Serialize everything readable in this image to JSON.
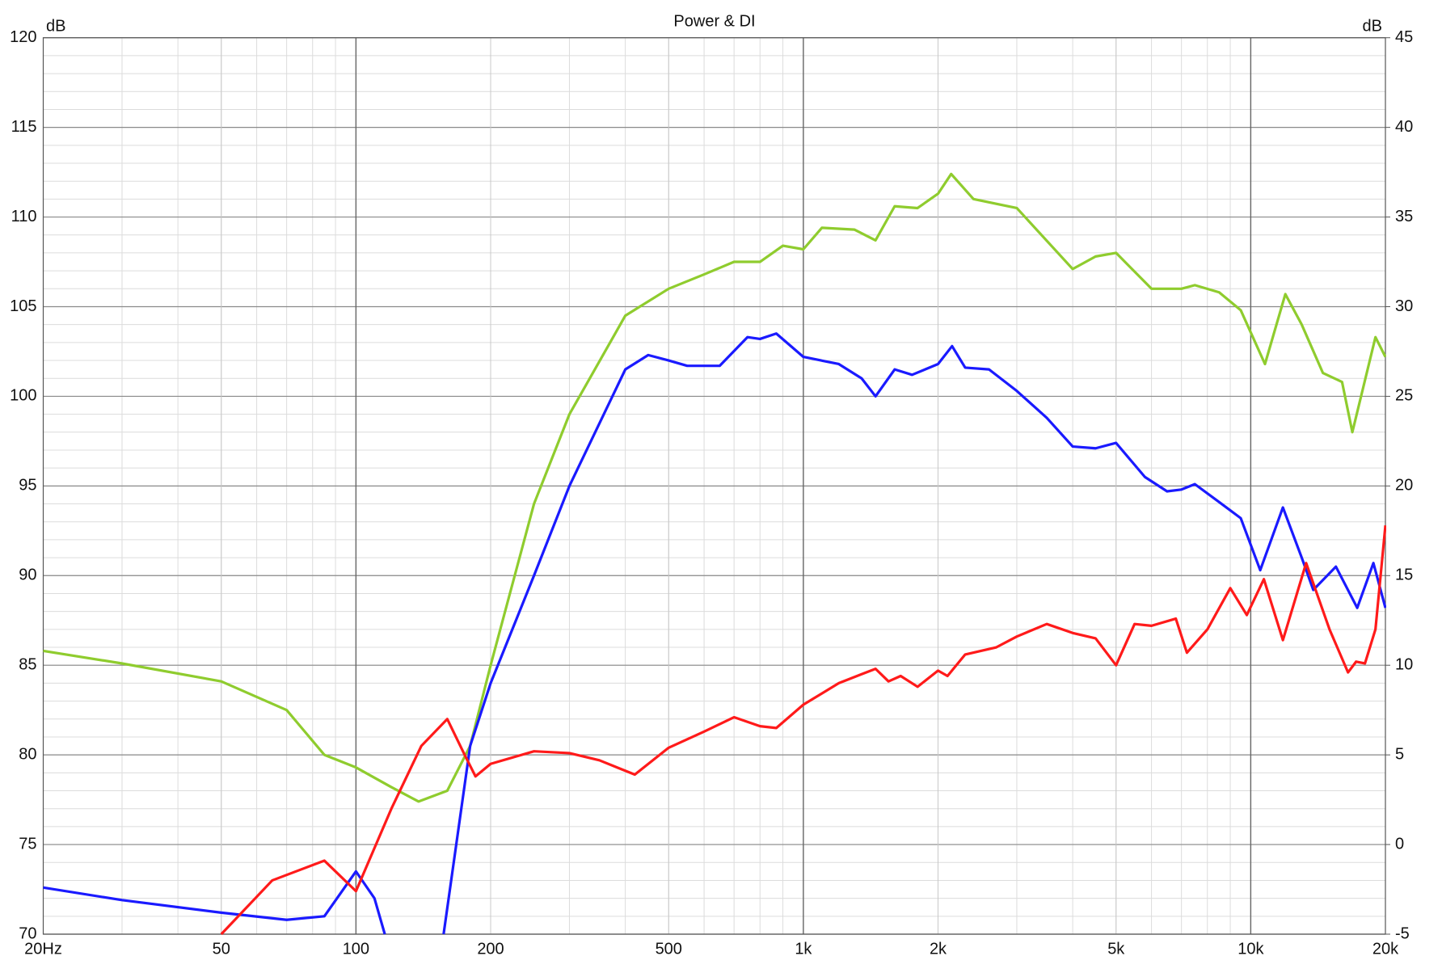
{
  "chart_data": {
    "type": "line",
    "title": "Power & DI",
    "y_label": "dB",
    "y2_label": "dB",
    "xscale": "log",
    "minor_grid": true,
    "xlim": [
      20,
      20000
    ],
    "xticks": [
      {
        "value": 20,
        "label": "20Hz"
      },
      50,
      100,
      200,
      500,
      {
        "value": 1000,
        "label": "1k"
      },
      {
        "value": 2000,
        "label": "2k"
      },
      {
        "value": 5000,
        "label": "5k"
      },
      {
        "value": 10000,
        "label": "10k"
      },
      {
        "value": 20000,
        "label": "20k"
      }
    ],
    "ylim": [
      70,
      120
    ],
    "yticks": [
      70,
      75,
      80,
      85,
      90,
      95,
      100,
      105,
      110,
      115,
      120
    ],
    "y2lim": [
      -5,
      45
    ],
    "y2ticks": [
      -5,
      0,
      5,
      10,
      15,
      20,
      25,
      30,
      35,
      40,
      45
    ],
    "series": [
      {
        "color": "#8fcc2e",
        "x": [
          20,
          30,
          50,
          70,
          85,
          100,
          120,
          138,
          160,
          180,
          200,
          250,
          300,
          400,
          500,
          600,
          700,
          800,
          900,
          1000,
          1100,
          1300,
          1450,
          1600,
          1800,
          2000,
          2140,
          2400,
          3000,
          4000,
          4500,
          5000,
          6000,
          7000,
          7500,
          8500,
          9500,
          10760,
          11950,
          13000,
          14500,
          16000,
          16870,
          19000,
          20000
        ],
        "values": [
          85.8,
          85.1,
          84.1,
          82.5,
          80.0,
          79.3,
          78.2,
          77.4,
          78.0,
          80.5,
          85.0,
          94.0,
          99.0,
          104.5,
          106.0,
          106.8,
          107.5,
          107.5,
          108.4,
          108.2,
          109.4,
          109.3,
          108.7,
          110.6,
          110.5,
          111.3,
          112.4,
          111.0,
          110.5,
          107.1,
          107.8,
          108.0,
          106.0,
          106.0,
          106.2,
          105.8,
          104.8,
          101.8,
          105.7,
          104.0,
          101.3,
          100.8,
          98.0,
          103.3,
          102.2
        ]
      },
      {
        "color": "#1a1aff",
        "x": [
          20,
          30,
          50,
          70,
          85,
          100,
          110,
          116,
          135,
          157,
          180,
          200,
          250,
          300,
          400,
          450,
          500,
          550,
          650,
          750,
          800,
          870,
          1000,
          1200,
          1350,
          1450,
          1600,
          1750,
          2000,
          2150,
          2300,
          2600,
          3000,
          3500,
          4000,
          4500,
          5000,
          5800,
          6500,
          7000,
          7500,
          8500,
          9500,
          10500,
          11800,
          13000,
          13800,
          15500,
          17300,
          18800,
          20000
        ],
        "values": [
          72.6,
          71.9,
          71.2,
          70.8,
          71.0,
          73.5,
          72.0,
          70.0,
          null,
          70.0,
          80.5,
          84.0,
          90.0,
          95.0,
          101.5,
          102.3,
          102.0,
          101.7,
          101.7,
          103.3,
          103.2,
          103.5,
          102.2,
          101.8,
          101.0,
          100.0,
          101.5,
          101.2,
          101.8,
          102.8,
          101.6,
          101.5,
          100.3,
          98.8,
          97.2,
          97.1,
          97.4,
          95.5,
          94.7,
          94.8,
          95.1,
          94.1,
          93.2,
          90.3,
          93.8,
          91.0,
          89.2,
          90.5,
          88.2,
          90.7,
          88.2
        ]
      },
      {
        "color": "#ff1a1a",
        "axis": "y2",
        "x": [
          50,
          65,
          85,
          100,
          120,
          140,
          160,
          175,
          185,
          200,
          250,
          300,
          350,
          420,
          500,
          600,
          700,
          800,
          870,
          1000,
          1200,
          1350,
          1450,
          1550,
          1650,
          1800,
          2000,
          2100,
          2300,
          2700,
          3000,
          3500,
          4000,
          4500,
          5000,
          5500,
          6000,
          6800,
          7200,
          8000,
          9000,
          9800,
          10700,
          11800,
          13300,
          15000,
          16500,
          17200,
          18000,
          19000,
          20000
        ],
        "values": [
          -5.0,
          -2.0,
          -0.9,
          -2.6,
          2.0,
          5.5,
          7.0,
          5.0,
          3.8,
          4.5,
          5.2,
          5.1,
          4.7,
          3.9,
          5.4,
          6.3,
          7.1,
          6.6,
          6.5,
          7.8,
          9.0,
          9.5,
          9.8,
          9.1,
          9.4,
          8.8,
          9.7,
          9.4,
          10.6,
          11.0,
          11.6,
          12.3,
          11.8,
          11.5,
          10.0,
          12.3,
          12.2,
          12.6,
          10.7,
          12.0,
          14.3,
          12.8,
          14.8,
          11.4,
          15.7,
          12.0,
          9.6,
          10.2,
          10.1,
          12.0,
          17.8
        ]
      }
    ]
  }
}
